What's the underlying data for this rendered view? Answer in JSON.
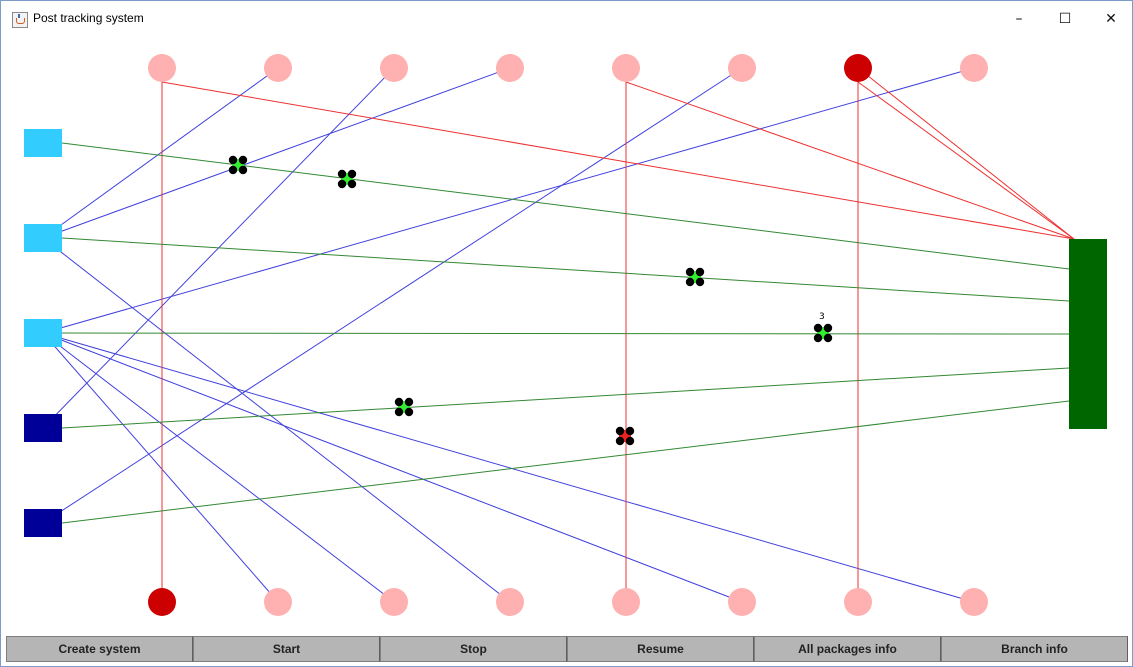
{
  "window": {
    "title": "Post tracking system",
    "controls": {
      "minimize": "–",
      "maximize": "☐",
      "close": "✕"
    }
  },
  "toolbar": {
    "create_label": "Create system",
    "start_label": "Start",
    "stop_label": "Stop",
    "resume_label": "Resume",
    "all_packages_label": "All packages info",
    "branch_info_label": "Branch info"
  },
  "colors": {
    "background": "#ffffff",
    "branch_light": "#33ccff",
    "branch_dark": "#000099",
    "hub": "#006600",
    "point_idle": "#ffb0b0",
    "point_active": "#cc0000",
    "route_blue": "#4040dd",
    "route_red": "#ee3030",
    "route_green": "#338833",
    "package_dot": "#000000",
    "package_green": "#33ee33",
    "package_red": "#ee2020"
  },
  "map": {
    "package_label": "3"
  }
}
